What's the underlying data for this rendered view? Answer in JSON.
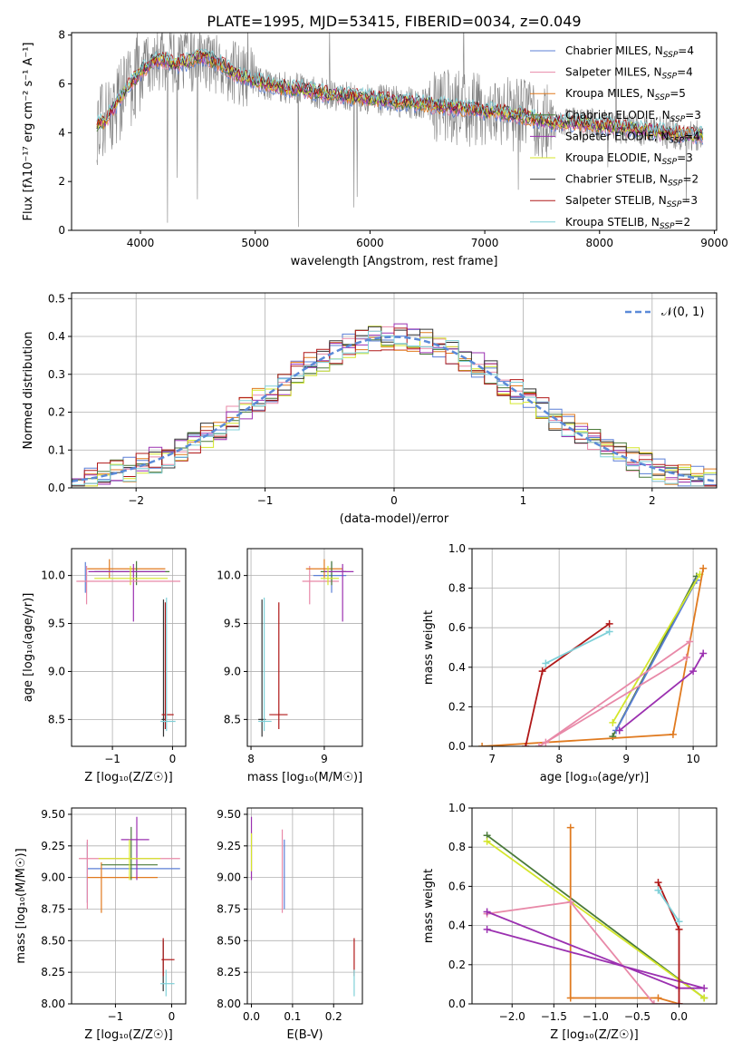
{
  "title": "PLATE=1995, MJD=53415, FIBERID=0034, z=0.049",
  "series_colors": [
    "#5b7fd6",
    "#e889a8",
    "#e07a1f",
    "#4a7a3a",
    "#9b30b0",
    "#d4e62a",
    "#333333",
    "#b01818",
    "#7fd0d8"
  ],
  "chart_data": [
    {
      "id": "spectrum",
      "type": "line",
      "xlabel": "wavelength [Angstrom, rest frame]",
      "ylabel": "Flux [fλ10⁻¹⁷ erg cm⁻² s⁻¹ A⁻¹]",
      "xlim": [
        3400,
        9020
      ],
      "ylim": [
        0,
        8.1
      ],
      "xticks": [
        4000,
        5000,
        6000,
        7000,
        8000,
        9000
      ],
      "yticks": [
        0,
        2,
        4,
        6,
        8
      ],
      "grid": false,
      "legend": "upper right",
      "legend_entries": [
        {
          "name": "Chabrier MILES",
          "nssp": "N",
          "sub": "SSP",
          "eq": "=4"
        },
        {
          "name": "Salpeter MILES",
          "nssp": "N",
          "sub": "SSP",
          "eq": "=4"
        },
        {
          "name": "Kroupa MILES",
          "nssp": "N",
          "sub": "SSP",
          "eq": "=5"
        },
        {
          "name": "Chabrier ELODIE",
          "nssp": "N",
          "sub": "SSP",
          "eq": "=3"
        },
        {
          "name": "Salpeter ELODIE",
          "nssp": "N",
          "sub": "SSP",
          "eq": "=4"
        },
        {
          "name": "Kroupa ELODIE",
          "nssp": "N",
          "sub": "SSP",
          "eq": "=3"
        },
        {
          "name": "Chabrier STELIB",
          "nssp": "N",
          "sub": "SSP",
          "eq": "=2"
        },
        {
          "name": "Salpeter STELIB",
          "nssp": "N",
          "sub": "SSP",
          "eq": "=3"
        },
        {
          "name": "Kroupa STELIB",
          "nssp": "N",
          "sub": "SSP",
          "eq": "=2"
        }
      ],
      "continuum": [
        [
          3620,
          4.3
        ],
        [
          3700,
          4.5
        ],
        [
          3800,
          5.3
        ],
        [
          3900,
          5.9
        ],
        [
          4000,
          6.5
        ],
        [
          4100,
          6.9
        ],
        [
          4200,
          7.0
        ],
        [
          4300,
          6.8
        ],
        [
          4400,
          6.9
        ],
        [
          4500,
          7.1
        ],
        [
          4600,
          7.0
        ],
        [
          4700,
          6.8
        ],
        [
          4800,
          6.5
        ],
        [
          4900,
          6.3
        ],
        [
          5000,
          6.1
        ],
        [
          5100,
          6.0
        ],
        [
          5200,
          5.9
        ],
        [
          5300,
          5.8
        ],
        [
          5400,
          5.8
        ],
        [
          5600,
          5.6
        ],
        [
          5800,
          5.5
        ],
        [
          6000,
          5.4
        ],
        [
          6200,
          5.3
        ],
        [
          6400,
          5.2
        ],
        [
          6600,
          5.1
        ],
        [
          6800,
          5.0
        ],
        [
          7000,
          4.9
        ],
        [
          7200,
          4.8
        ],
        [
          7400,
          4.6
        ],
        [
          7600,
          4.4
        ],
        [
          7800,
          4.4
        ],
        [
          8000,
          4.3
        ],
        [
          8200,
          4.2
        ],
        [
          8400,
          4.1
        ],
        [
          8600,
          4.0
        ],
        [
          8800,
          3.9
        ]
      ]
    },
    {
      "id": "residuals",
      "type": "step",
      "xlabel": "(data-model)/error",
      "ylabel": "Normed distribution",
      "xlim": [
        -2.5,
        2.5
      ],
      "ylim": [
        0,
        0.515
      ],
      "xticks": [
        -2,
        -1,
        0,
        1,
        2
      ],
      "xtick_labels": [
        "−2",
        "−1",
        "0",
        "1",
        "2"
      ],
      "yticks": [
        0,
        0.1,
        0.2,
        0.3,
        0.4,
        0.5
      ],
      "ytick_labels": [
        "0.0",
        "0.1",
        "0.2",
        "0.3",
        "0.4",
        "0.5"
      ],
      "grid": true,
      "legend": "upper right",
      "gaussian_label": "𝒩(0, 1)",
      "gaussian_color": "#5b8ad8"
    },
    {
      "id": "age-vs-Z",
      "type": "errorbar",
      "xlabel": "Z [log₁₀(Z/Z☉)]",
      "ylabel": "age  [log₁₀(age/yr)]",
      "xlim": [
        -1.68,
        0.22
      ],
      "ylim": [
        8.22,
        10.28
      ],
      "xticks": [
        -1,
        0
      ],
      "xtick_labels": [
        "−1",
        "0"
      ],
      "yticks": [
        8.5,
        9.0,
        9.5,
        10.0
      ],
      "ytick_labels": [
        "8.5",
        "9.0",
        "9.5",
        "10.0"
      ],
      "grid": true,
      "points": [
        {
          "s": 0,
          "x": -1.45,
          "y": 10.0,
          "xe": [
            -1.45,
            -1.45
          ],
          "ye": [
            9.82,
            10.14
          ]
        },
        {
          "s": 1,
          "x": -1.43,
          "y": 9.97,
          "xe": [
            -1.43,
            -1.43
          ],
          "ye": [
            9.7,
            10.1
          ]
        },
        {
          "s": 2,
          "x": -1.05,
          "y": 10.07,
          "xe": [
            -1.42,
            -0.12
          ],
          "ye": [
            9.97,
            10.17
          ]
        },
        {
          "s": 3,
          "x": -0.6,
          "y": 10.04,
          "xe": [
            -1.3,
            -0.05
          ],
          "ye": [
            9.9,
            10.15
          ]
        },
        {
          "s": 4,
          "x": -0.65,
          "y": 10.04,
          "xe": [
            -1.4,
            -0.12
          ],
          "ye": [
            9.52,
            10.12
          ]
        },
        {
          "s": 5,
          "x": -0.7,
          "y": 9.97,
          "xe": [
            -1.3,
            -0.08
          ],
          "ye": [
            9.9,
            10.1
          ]
        },
        {
          "s": 1,
          "x": -1.0,
          "y": 9.94,
          "xe": [
            -1.6,
            0.13
          ],
          "ye": [
            9.94,
            9.94
          ]
        },
        {
          "s": 6,
          "x": -0.15,
          "y": 8.5,
          "xe": [
            -0.18,
            -0.12
          ],
          "ye": [
            8.32,
            9.75
          ]
        },
        {
          "s": 7,
          "x": -0.12,
          "y": 8.55,
          "xe": [
            -0.18,
            0.02
          ],
          "ye": [
            8.4,
            9.72
          ]
        },
        {
          "s": 8,
          "x": -0.1,
          "y": 8.48,
          "xe": [
            -0.2,
            0.05
          ],
          "ye": [
            8.38,
            9.77
          ]
        }
      ]
    },
    {
      "id": "age-vs-mass",
      "type": "errorbar",
      "xlabel": "mass [log₁₀(M/M☉)]",
      "ylabel": "",
      "xlim": [
        7.95,
        9.52
      ],
      "ylim": [
        8.22,
        10.28
      ],
      "xticks": [
        8,
        9
      ],
      "xtick_labels": [
        "8",
        "9"
      ],
      "yticks": [
        8.5,
        9.0,
        9.5,
        10.0
      ],
      "ytick_labels": [
        "8.5",
        "9.0",
        "9.5",
        "10.0"
      ],
      "grid": true,
      "points": [
        {
          "s": 0,
          "x": 9.1,
          "y": 10.0,
          "xe": [
            8.85,
            9.3
          ],
          "ye": [
            9.82,
            10.14
          ]
        },
        {
          "s": 1,
          "x": 8.8,
          "y": 9.94,
          "xe": [
            8.7,
            9.2
          ],
          "ye": [
            9.7,
            10.1
          ]
        },
        {
          "s": 2,
          "x": 9.0,
          "y": 10.07,
          "xe": [
            8.75,
            9.25
          ],
          "ye": [
            9.97,
            10.17
          ]
        },
        {
          "s": 3,
          "x": 9.1,
          "y": 10.04,
          "xe": [
            8.95,
            9.3
          ],
          "ye": [
            9.9,
            10.15
          ]
        },
        {
          "s": 4,
          "x": 9.25,
          "y": 10.04,
          "xe": [
            9.0,
            9.4
          ],
          "ye": [
            9.52,
            10.12
          ]
        },
        {
          "s": 5,
          "x": 9.05,
          "y": 9.97,
          "xe": [
            8.95,
            9.2
          ],
          "ye": [
            9.9,
            10.1
          ]
        },
        {
          "s": 6,
          "x": 8.15,
          "y": 8.5,
          "xe": [
            8.1,
            8.2
          ],
          "ye": [
            8.32,
            9.75
          ]
        },
        {
          "s": 7,
          "x": 8.38,
          "y": 8.55,
          "xe": [
            8.25,
            8.5
          ],
          "ye": [
            8.4,
            9.72
          ]
        },
        {
          "s": 8,
          "x": 8.18,
          "y": 8.48,
          "xe": [
            8.1,
            8.28
          ],
          "ye": [
            8.38,
            9.77
          ]
        }
      ]
    },
    {
      "id": "weight-vs-age",
      "type": "line",
      "xlabel": "age  [log₁₀(age/yr)]",
      "ylabel": "mass weight",
      "xlim": [
        6.7,
        10.35
      ],
      "ylim": [
        0,
        1.0
      ],
      "xticks": [
        7,
        8,
        9,
        10
      ],
      "yticks": [
        0,
        0.2,
        0.4,
        0.6,
        0.8,
        1.0
      ],
      "ytick_labels": [
        "0.0",
        "0.2",
        "0.4",
        "0.6",
        "0.8",
        "1.0"
      ],
      "grid": true,
      "series": [
        {
          "s": 3,
          "x": [
            8.8,
            10.05
          ],
          "y": [
            0.05,
            0.86
          ]
        },
        {
          "s": 0,
          "x": [
            8.85,
            10.05
          ],
          "y": [
            0.08,
            0.84
          ]
        },
        {
          "s": 5,
          "x": [
            8.8,
            10.1
          ],
          "y": [
            0.12,
            0.87
          ]
        },
        {
          "s": 2,
          "x": [
            6.85,
            9.7,
            10.15
          ],
          "y": [
            0.0,
            0.06,
            0.9
          ]
        },
        {
          "s": 1,
          "x": [
            7.8,
            9.95
          ],
          "y": [
            0.02,
            0.53
          ]
        },
        {
          "s": 4,
          "x": [
            8.9,
            10.0,
            10.15
          ],
          "y": [
            0.08,
            0.38,
            0.47
          ]
        },
        {
          "s": 7,
          "x": [
            7.5,
            7.75,
            8.75
          ],
          "y": [
            0.0,
            0.38,
            0.62
          ]
        },
        {
          "s": 8,
          "x": [
            7.8,
            8.75
          ],
          "y": [
            0.42,
            0.58
          ]
        },
        {
          "s": 1,
          "x": [
            7.7,
            9.9
          ],
          "y": [
            0.0,
            0.45
          ]
        }
      ]
    },
    {
      "id": "mass-vs-Z",
      "type": "errorbar",
      "xlabel": "Z [log₁₀(Z/Z☉)]",
      "ylabel": "mass [log₁₀(M/M☉)]",
      "xlim": [
        -1.78,
        0.25
      ],
      "ylim": [
        8.0,
        9.55
      ],
      "xticks": [
        -1,
        0
      ],
      "xtick_labels": [
        "−1",
        "0"
      ],
      "yticks": [
        8.0,
        8.25,
        8.5,
        8.75,
        9.0,
        9.25,
        9.5
      ],
      "ytick_labels": [
        "8.00",
        "8.25",
        "8.50",
        "8.75",
        "9.00",
        "9.25",
        "9.50"
      ],
      "grid": true,
      "points": [
        {
          "s": 0,
          "x": -1.5,
          "y": 9.07,
          "xe": [
            -1.5,
            0.15
          ],
          "ye": [
            8.8,
            9.28
          ]
        },
        {
          "s": 1,
          "x": -1.5,
          "y": 9.15,
          "xe": [
            -1.65,
            0.15
          ],
          "ye": [
            8.75,
            9.3
          ]
        },
        {
          "s": 2,
          "x": -1.25,
          "y": 9.0,
          "xe": [
            -1.5,
            -0.25
          ],
          "ye": [
            8.72,
            9.12
          ]
        },
        {
          "s": 3,
          "x": -0.72,
          "y": 9.1,
          "xe": [
            -1.25,
            -0.25
          ],
          "ye": [
            8.98,
            9.4
          ]
        },
        {
          "s": 4,
          "x": -0.62,
          "y": 9.3,
          "xe": [
            -0.9,
            -0.4
          ],
          "ye": [
            8.98,
            9.48
          ]
        },
        {
          "s": 5,
          "x": -0.75,
          "y": 9.15,
          "xe": [
            -1.3,
            -0.2
          ],
          "ye": [
            8.98,
            9.3
          ]
        },
        {
          "s": 6,
          "x": -0.15,
          "y": 8.35,
          "xe": [
            -0.15,
            -0.15
          ],
          "ye": [
            8.1,
            8.5
          ]
        },
        {
          "s": 7,
          "x": -0.15,
          "y": 8.35,
          "xe": [
            -0.18,
            0.05
          ],
          "ye": [
            8.22,
            8.52
          ]
        },
        {
          "s": 8,
          "x": -0.1,
          "y": 8.16,
          "xe": [
            -0.2,
            0.05
          ],
          "ye": [
            8.06,
            8.27
          ]
        }
      ]
    },
    {
      "id": "mass-vs-ebv",
      "type": "errorbar",
      "xlabel": "E(B-V)",
      "ylabel": "",
      "xlim": [
        -0.01,
        0.27
      ],
      "ylim": [
        8.0,
        9.55
      ],
      "xticks": [
        0.0,
        0.1,
        0.2
      ],
      "xtick_labels": [
        "0.0",
        "0.1",
        "0.2"
      ],
      "yticks": [
        8.0,
        8.25,
        8.5,
        8.75,
        9.0,
        9.25,
        9.5
      ],
      "ytick_labels": [
        "8.00",
        "8.25",
        "8.50",
        "8.75",
        "9.00",
        "9.25",
        "9.50"
      ],
      "grid": true,
      "points": [
        {
          "s": 4,
          "x": 0.0,
          "y": 9.3,
          "xe": [
            0.0,
            0.0
          ],
          "ye": [
            8.98,
            9.48
          ]
        },
        {
          "s": 5,
          "x": 0.0,
          "y": 9.15,
          "xe": [
            0.0,
            0.0
          ],
          "ye": [
            9.05,
            9.35
          ]
        },
        {
          "s": 1,
          "x": 0.075,
          "y": 9.05,
          "xe": [
            0.075,
            0.075
          ],
          "ye": [
            8.72,
            9.38
          ]
        },
        {
          "s": 0,
          "x": 0.08,
          "y": 9.07,
          "xe": [
            0.08,
            0.08
          ],
          "ye": [
            8.75,
            9.3
          ]
        },
        {
          "s": 7,
          "x": 0.25,
          "y": 8.35,
          "xe": [
            0.25,
            0.25
          ],
          "ye": [
            8.22,
            8.52
          ]
        },
        {
          "s": 8,
          "x": 0.25,
          "y": 8.16,
          "xe": [
            0.25,
            0.25
          ],
          "ye": [
            8.06,
            8.27
          ]
        }
      ]
    },
    {
      "id": "weight-vs-Z",
      "type": "line",
      "xlabel": "Z [log₁₀(Z/Z☉)]",
      "ylabel": "mass weight",
      "xlim": [
        -2.48,
        0.45
      ],
      "ylim": [
        0,
        1.0
      ],
      "xticks": [
        -2.0,
        -1.5,
        -1.0,
        -0.5,
        0.0
      ],
      "xtick_labels": [
        "−2.0",
        "−1.5",
        "−1.0",
        "−0.5",
        "0.0"
      ],
      "yticks": [
        0,
        0.2,
        0.4,
        0.6,
        0.8,
        1.0
      ],
      "ytick_labels": [
        "0.0",
        "0.2",
        "0.4",
        "0.6",
        "0.8",
        "1.0"
      ],
      "grid": true,
      "series": [
        {
          "s": 3,
          "x": [
            -2.3,
            0.3
          ],
          "y": [
            0.86,
            0.03
          ]
        },
        {
          "s": 5,
          "x": [
            -2.3,
            0.3
          ],
          "y": [
            0.83,
            0.03
          ]
        },
        {
          "s": 2,
          "x": [
            -1.3,
            -1.3,
            -0.25,
            0.0
          ],
          "y": [
            0.9,
            0.03,
            0.03,
            0.0
          ]
        },
        {
          "s": 1,
          "x": [
            -2.3,
            -1.3,
            -0.3,
            0.0
          ],
          "y": [
            0.46,
            0.52,
            0.0,
            0.0
          ]
        },
        {
          "s": 4,
          "x": [
            -2.3,
            0.3,
            0.0,
            -2.3
          ],
          "y": [
            0.38,
            0.08,
            0.08,
            0.47
          ]
        },
        {
          "s": 7,
          "x": [
            -0.25,
            0.0,
            0.0
          ],
          "y": [
            0.62,
            0.38,
            0.0
          ]
        },
        {
          "s": 8,
          "x": [
            -0.25,
            0.0
          ],
          "y": [
            0.58,
            0.42
          ]
        }
      ]
    }
  ]
}
